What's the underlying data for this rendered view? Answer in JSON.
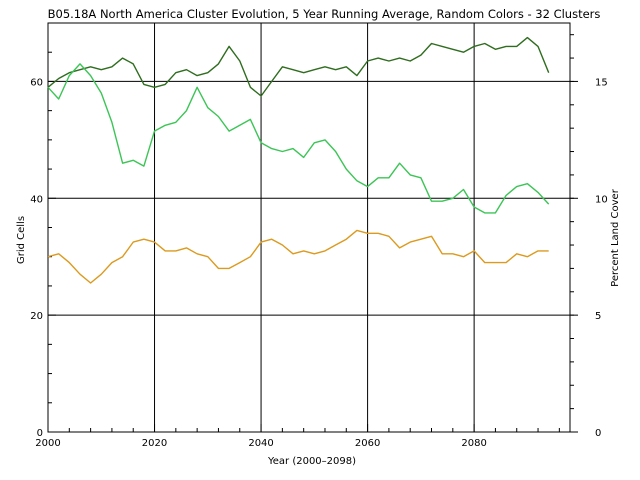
{
  "chart_data": {
    "type": "line",
    "title": "B05.18A North America Cluster Evolution, 5 Year Running Average, Random Colors - 32 Clusters",
    "xlabel": "Year (2000–2098)",
    "ylabel": "Grid Cells",
    "ylabel_right": "Percent Land Cover",
    "xlim": [
      2000,
      2098
    ],
    "ylim": [
      0,
      70
    ],
    "ylim_right": [
      0,
      17.5
    ],
    "x_ticks": [
      "2000",
      "2020",
      "2040",
      "2060",
      "2080"
    ],
    "x_tick_values": [
      2000,
      2020,
      2040,
      2060,
      2080
    ],
    "y_ticks": [
      "0",
      "20",
      "40",
      "60"
    ],
    "y_tick_values": [
      0,
      20,
      40,
      60
    ],
    "y_right_ticks": [
      "0",
      "5",
      "10",
      "15"
    ],
    "y_right_tick_values": [
      0,
      5,
      10,
      15
    ],
    "grid": true,
    "series": [
      {
        "color": "#2f6d1f",
        "x": [
          2000,
          2002,
          2004,
          2006,
          2008,
          2010,
          2012,
          2014,
          2016,
          2018,
          2020,
          2022,
          2024,
          2026,
          2028,
          2030,
          2032,
          2034,
          2036,
          2038,
          2040,
          2042,
          2044,
          2046,
          2048,
          2050,
          2052,
          2054,
          2056,
          2058,
          2060,
          2062,
          2064,
          2066,
          2068,
          2070,
          2072,
          2074,
          2076,
          2078,
          2080,
          2082,
          2084,
          2086,
          2088,
          2090,
          2092,
          2094
        ],
        "y": [
          59,
          60.5,
          61.5,
          62,
          62.5,
          62,
          62.5,
          64,
          63,
          59.5,
          59,
          59.5,
          61.5,
          62,
          61,
          61.5,
          63,
          66,
          63.5,
          59,
          57.5,
          60,
          62.5,
          62,
          61.5,
          62,
          62.5,
          62,
          62.5,
          61,
          63.5,
          64,
          63.5,
          64,
          63.5,
          64.5,
          66.5,
          66,
          65.5,
          65,
          66,
          66.5,
          65.5,
          66,
          66,
          67.5,
          66,
          61.5
        ]
      },
      {
        "color": "#3cc556",
        "x": [
          2000,
          2002,
          2004,
          2006,
          2008,
          2010,
          2012,
          2014,
          2016,
          2018,
          2020,
          2022,
          2024,
          2026,
          2028,
          2030,
          2032,
          2034,
          2036,
          2038,
          2040,
          2042,
          2044,
          2046,
          2048,
          2050,
          2052,
          2054,
          2056,
          2058,
          2060,
          2062,
          2064,
          2066,
          2068,
          2070,
          2072,
          2074,
          2076,
          2078,
          2080,
          2082,
          2084,
          2086,
          2088,
          2090,
          2092,
          2094
        ],
        "y": [
          59,
          57,
          61,
          63,
          61,
          58,
          53,
          46,
          46.5,
          45.5,
          51.5,
          52.5,
          53,
          55,
          59,
          55.5,
          54,
          51.5,
          52.5,
          53.5,
          49.5,
          48.5,
          48,
          48.5,
          47,
          49.5,
          50,
          48,
          45,
          43,
          42,
          43.5,
          43.5,
          46,
          44,
          43.5,
          39.5,
          39.5,
          40,
          41.5,
          38.5,
          37.5,
          37.5,
          40.5,
          42,
          42.5,
          41,
          39
        ]
      },
      {
        "color": "#dc9a1e",
        "x": [
          2000,
          2002,
          2004,
          2006,
          2008,
          2010,
          2012,
          2014,
          2016,
          2018,
          2020,
          2022,
          2024,
          2026,
          2028,
          2030,
          2032,
          2034,
          2036,
          2038,
          2040,
          2042,
          2044,
          2046,
          2048,
          2050,
          2052,
          2054,
          2056,
          2058,
          2060,
          2062,
          2064,
          2066,
          2068,
          2070,
          2072,
          2074,
          2076,
          2078,
          2080,
          2082,
          2084,
          2086,
          2088,
          2090,
          2092,
          2094
        ],
        "y": [
          30,
          30.5,
          29,
          27,
          25.5,
          27,
          29,
          30,
          32.5,
          33,
          32.5,
          31,
          31,
          31.5,
          30.5,
          30,
          28,
          28,
          29,
          30,
          32.5,
          33,
          32,
          30.5,
          31,
          30.5,
          31,
          32,
          33,
          34.5,
          34,
          34,
          33.5,
          31.5,
          32.5,
          33,
          33.5,
          30.5,
          30.5,
          30,
          31,
          29,
          29,
          29,
          30.5,
          30,
          31,
          31
        ]
      }
    ]
  }
}
